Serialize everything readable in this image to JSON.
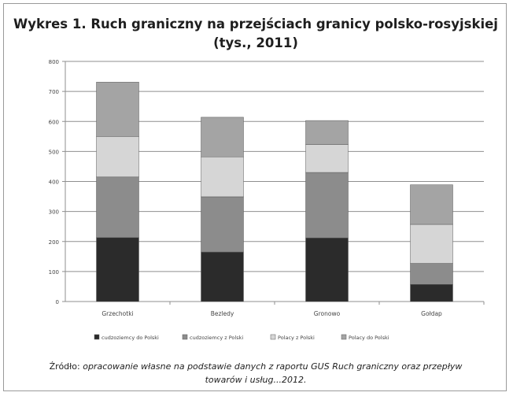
{
  "chart_data": {
    "type": "bar",
    "stacked": true,
    "title_line1": "Wykres 1. Ruch graniczny na przejściach granicy polsko-rosyjskiej",
    "title_line2": "(tys., 2011)",
    "xlabel": "",
    "ylabel": "",
    "ylim": [
      0,
      800
    ],
    "yticks": [
      "0",
      "100",
      "200",
      "300",
      "400",
      "500",
      "600",
      "700",
      "800"
    ],
    "grid": true,
    "legend_position": "bottom",
    "categories": [
      "Grzechotki",
      "Bezledy",
      "Gronowo",
      "Gołdap"
    ],
    "series": [
      {
        "name": "cudzoziemcy do Polski",
        "values": [
          213,
          165,
          212,
          57
        ],
        "color": "#2b2b2b"
      },
      {
        "name": "cudzoziemcy z Polski",
        "values": [
          202,
          184,
          218,
          70
        ],
        "color": "#8c8c8c"
      },
      {
        "name": "Polacy z Polski",
        "values": [
          135,
          133,
          93,
          130
        ],
        "color": "#d6d6d6"
      },
      {
        "name": "Polacy do Polski",
        "values": [
          181,
          132,
          80,
          132
        ],
        "color": "#a4a4a4"
      }
    ]
  },
  "source": {
    "label": "Źródło:",
    "text_line1": "opracowanie własne na podstawie danych z raportu GUS Ruch graniczny oraz przepływ",
    "text_line2": "towarów i usług...2012."
  }
}
